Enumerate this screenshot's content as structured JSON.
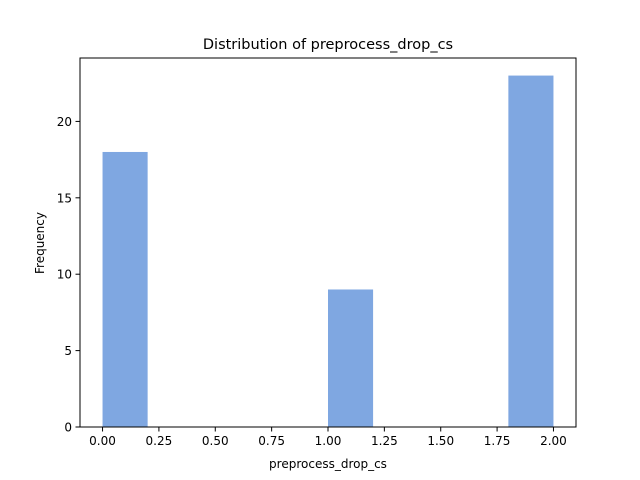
{
  "chart_data": {
    "type": "bar",
    "title": "Distribution of  preprocess_drop_cs",
    "xlabel": "preprocess_drop_cs",
    "ylabel": "Frequency",
    "bins": [
      {
        "x_start": 0.0,
        "x_end": 0.2,
        "count": 18
      },
      {
        "x_start": 0.2,
        "x_end": 0.4,
        "count": 0
      },
      {
        "x_start": 0.4,
        "x_end": 0.6,
        "count": 0
      },
      {
        "x_start": 0.6,
        "x_end": 0.8,
        "count": 0
      },
      {
        "x_start": 0.8,
        "x_end": 1.0,
        "count": 0
      },
      {
        "x_start": 1.0,
        "x_end": 1.2,
        "count": 9
      },
      {
        "x_start": 1.2,
        "x_end": 1.4,
        "count": 0
      },
      {
        "x_start": 1.4,
        "x_end": 1.6,
        "count": 0
      },
      {
        "x_start": 1.6,
        "x_end": 1.8,
        "count": 0
      },
      {
        "x_start": 1.8,
        "x_end": 2.0,
        "count": 23
      }
    ],
    "xlim": [
      -0.1,
      2.1
    ],
    "ylim": [
      0,
      24.15
    ],
    "xticks": [
      0.0,
      0.25,
      0.5,
      0.75,
      1.0,
      1.25,
      1.5,
      1.75,
      2.0
    ],
    "xtick_labels": [
      "0.00",
      "0.25",
      "0.50",
      "0.75",
      "1.00",
      "1.25",
      "1.50",
      "1.75",
      "2.00"
    ],
    "yticks": [
      0,
      5,
      10,
      15,
      20
    ],
    "ytick_labels": [
      "0",
      "5",
      "10",
      "15",
      "20"
    ],
    "grid": false,
    "legend": "none",
    "bar_color": "#7fa7e1"
  }
}
